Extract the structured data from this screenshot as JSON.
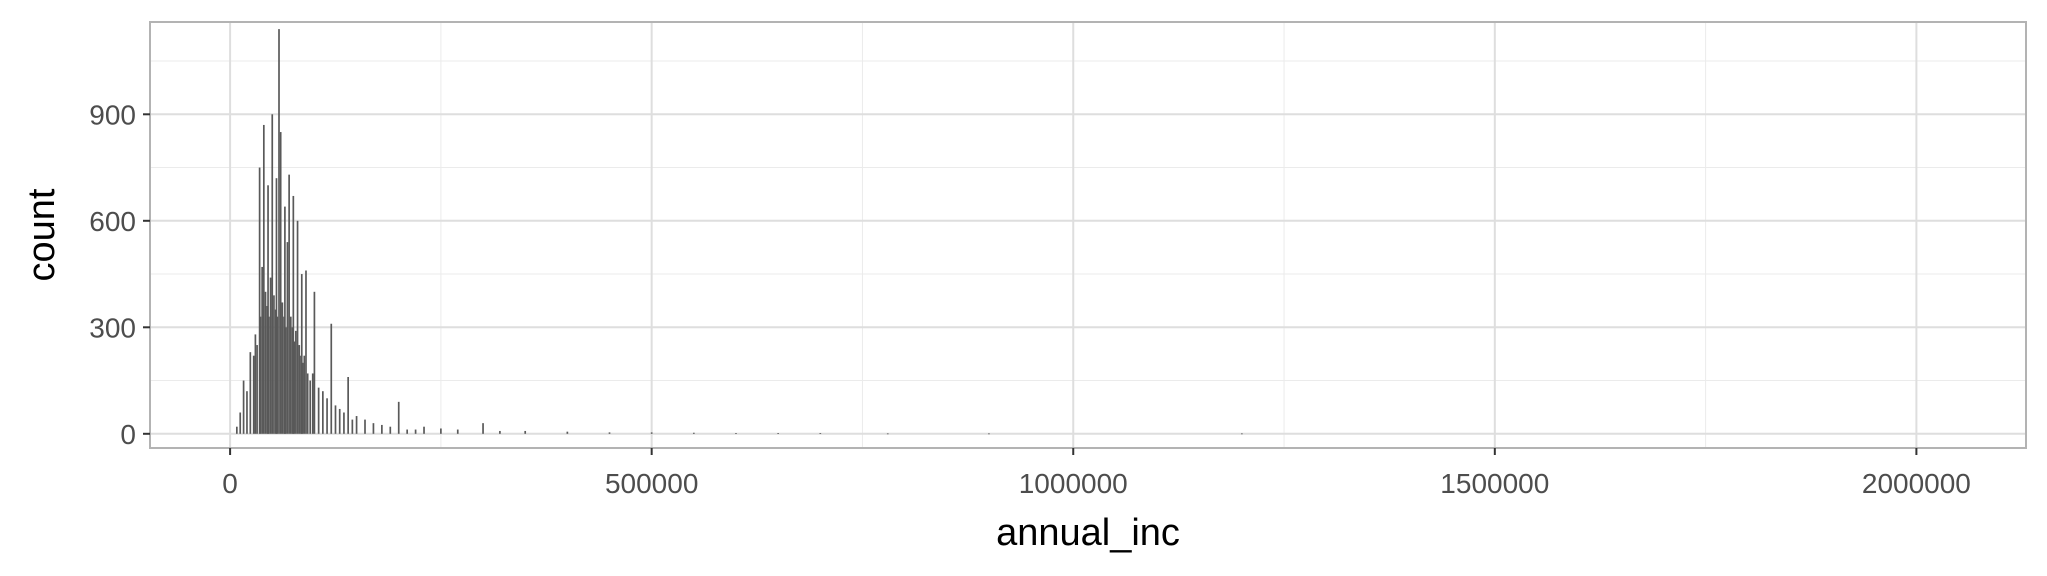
{
  "chart_data": {
    "type": "bar",
    "subtype": "histogram",
    "title": "",
    "xlabel": "annual_inc",
    "ylabel": "count",
    "xlim": [
      -95000,
      2130000
    ],
    "ylim": [
      -40,
      1160
    ],
    "x_ticks": [
      0,
      500000,
      1000000,
      1500000,
      2000000
    ],
    "x_tick_labels": [
      "0",
      "500000",
      "1000000",
      "1500000",
      "2000000"
    ],
    "y_ticks": [
      0,
      300,
      600,
      900
    ],
    "y_tick_labels": [
      "0",
      "300",
      "600",
      "900"
    ],
    "x_minor_ticks": [
      250000,
      750000,
      1250000,
      1750000
    ],
    "y_minor_ticks": [
      150,
      450,
      750,
      1050
    ],
    "grid": true,
    "bar_color": "#595959",
    "x": [
      8000,
      12000,
      16000,
      20000,
      24000,
      28000,
      30000,
      32000,
      35000,
      36000,
      38000,
      40000,
      42000,
      44000,
      45000,
      46000,
      48000,
      50000,
      52000,
      54000,
      55000,
      56000,
      58000,
      60000,
      62000,
      64000,
      65000,
      66000,
      68000,
      70000,
      72000,
      74000,
      75000,
      76000,
      78000,
      80000,
      82000,
      84000,
      85000,
      86000,
      88000,
      90000,
      92000,
      95000,
      98000,
      100000,
      105000,
      110000,
      115000,
      120000,
      125000,
      130000,
      135000,
      140000,
      145000,
      150000,
      160000,
      170000,
      180000,
      190000,
      200000,
      210000,
      220000,
      230000,
      250000,
      270000,
      300000,
      320000,
      350000,
      400000,
      450000,
      500000,
      550000,
      600000,
      650000,
      700000,
      780000,
      900000,
      1200000
    ],
    "values": [
      20,
      60,
      150,
      120,
      230,
      220,
      280,
      250,
      750,
      330,
      470,
      870,
      400,
      360,
      700,
      330,
      440,
      900,
      390,
      350,
      720,
      330,
      1140,
      850,
      370,
      330,
      640,
      300,
      540,
      730,
      330,
      300,
      670,
      260,
      290,
      600,
      250,
      220,
      450,
      200,
      220,
      460,
      170,
      150,
      170,
      400,
      130,
      120,
      100,
      310,
      80,
      70,
      60,
      160,
      40,
      50,
      40,
      30,
      25,
      20,
      90,
      12,
      12,
      20,
      15,
      12,
      30,
      8,
      8,
      6,
      4,
      4,
      3,
      2,
      2,
      2,
      1,
      1,
      1
    ]
  }
}
